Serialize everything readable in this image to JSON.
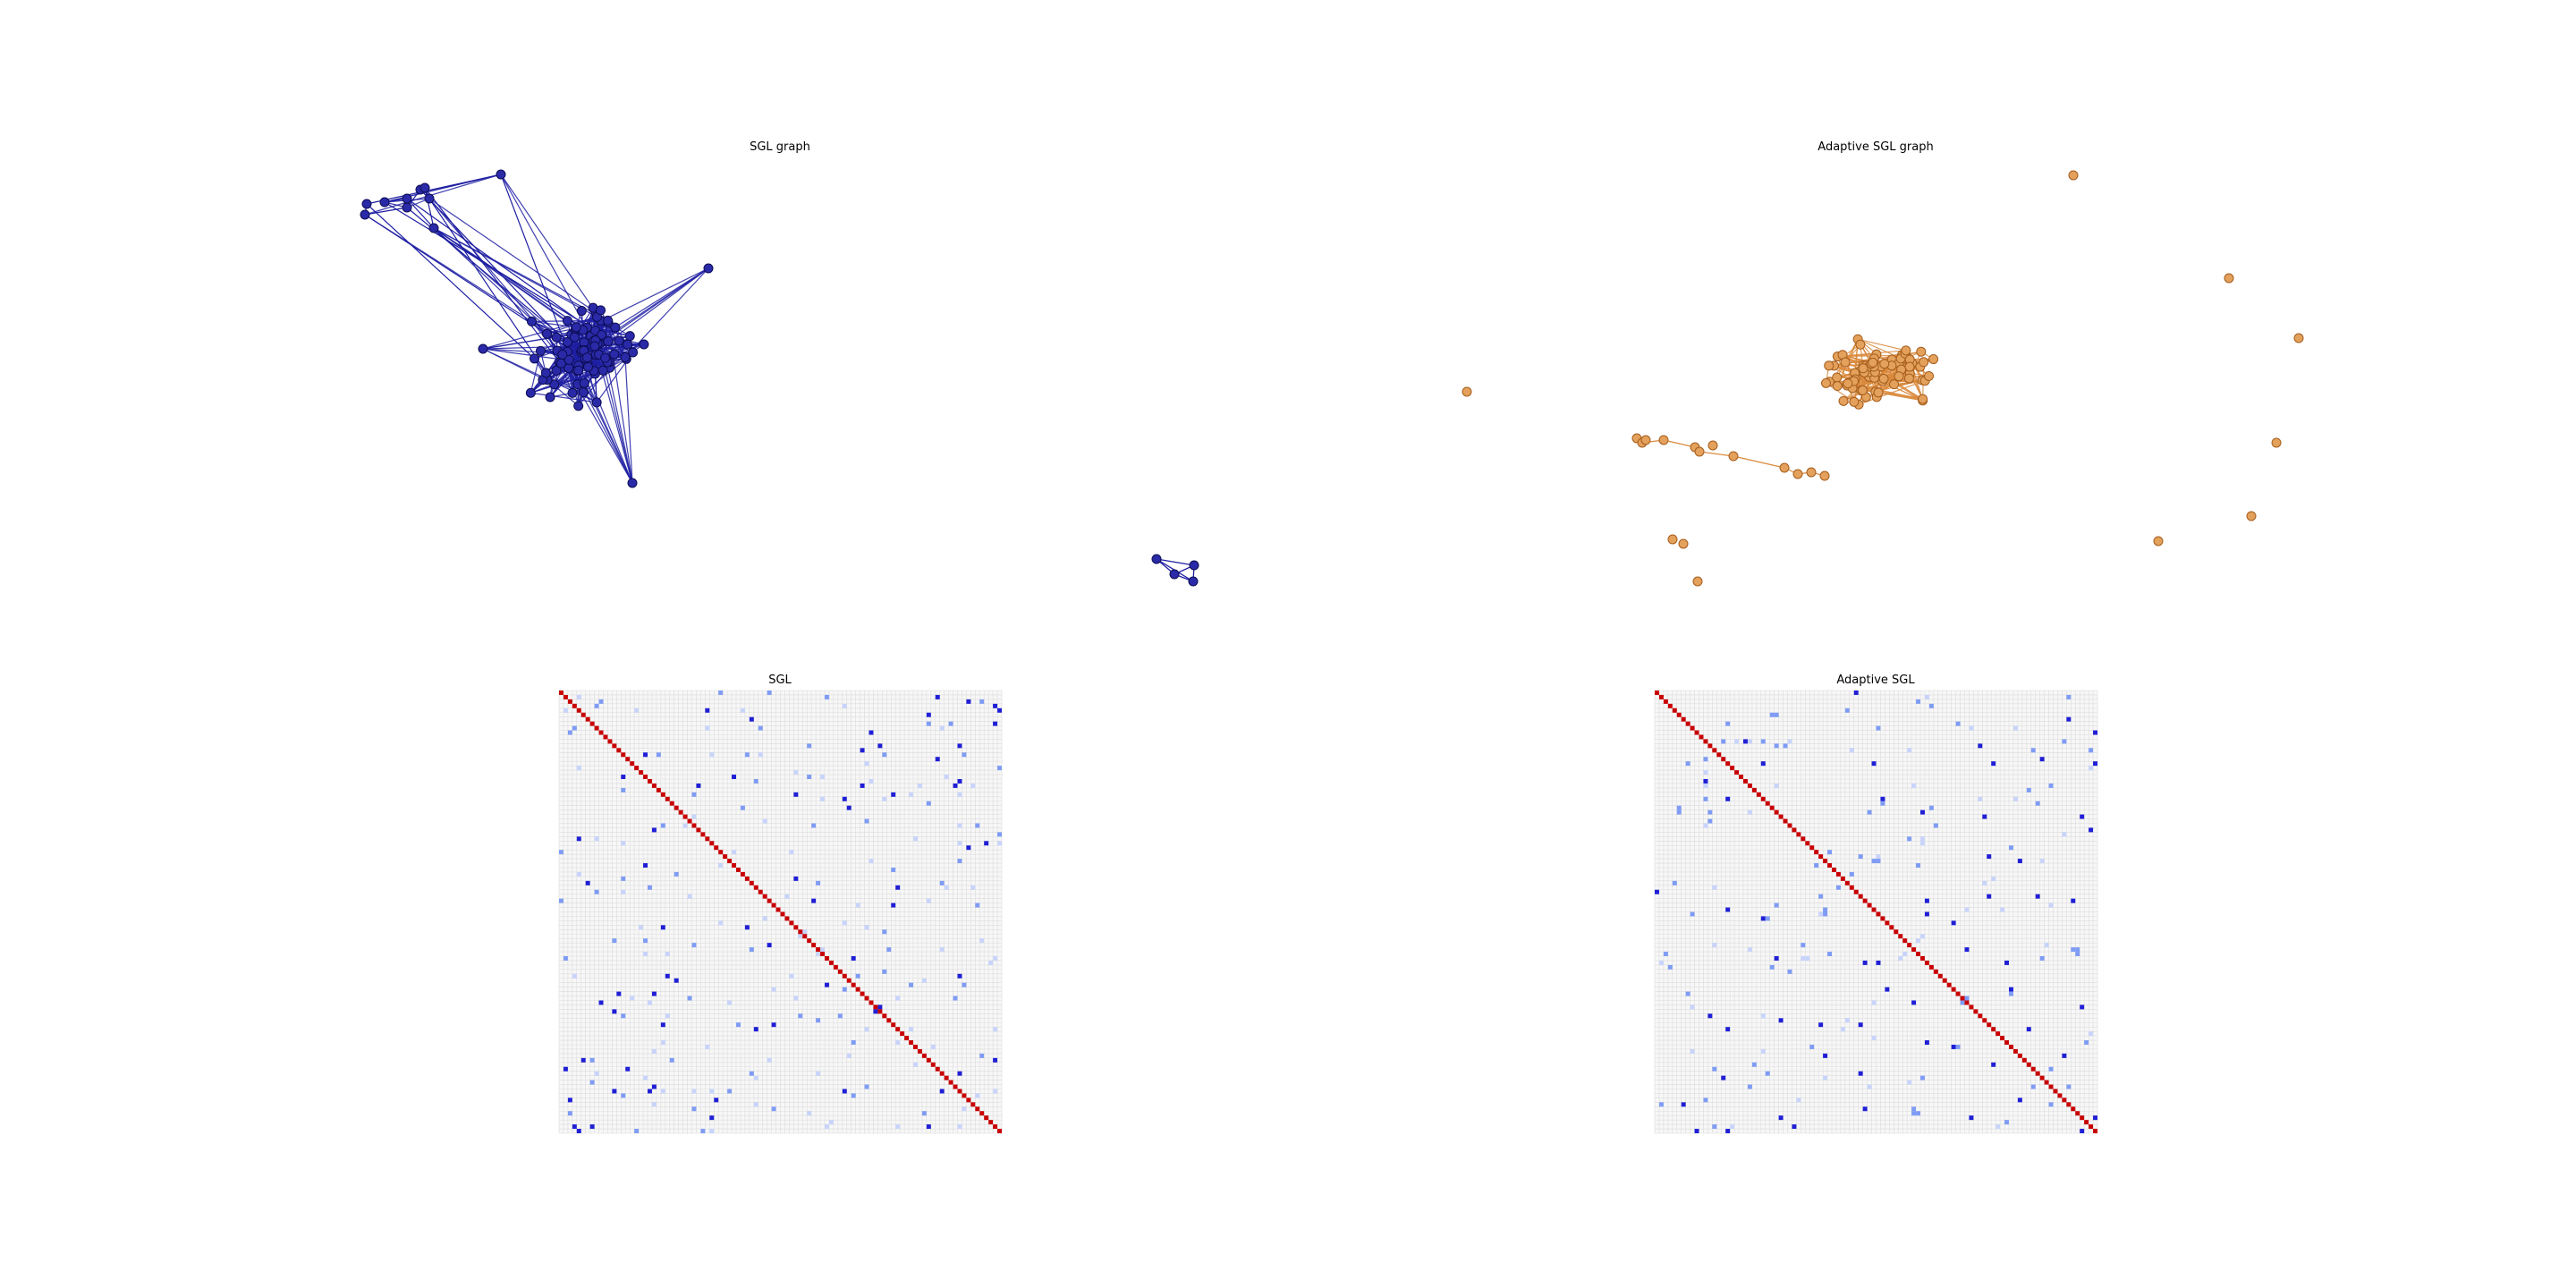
{
  "figure": {
    "panels": [
      {
        "id": "sgl-graph",
        "title": "SGL graph",
        "chart_type": "network",
        "edge_color": "#1f1fa3",
        "node_color": "#2a2aa8",
        "node_count": 100,
        "random_seed": 7
      },
      {
        "id": "adaptive-sgl-graph",
        "title": "Adaptive SGL graph",
        "chart_type": "network",
        "edge_color": "#d98a3c",
        "node_color": "#e3a15c",
        "node_count": 100,
        "random_seed": 13
      },
      {
        "id": "sgl-matrix",
        "title": "SGL",
        "chart_type": "heatmap",
        "matrix_size": 100,
        "diagonal_color": "#c80000",
        "offdiag_colors": [
          "#1f1fd6",
          "#7f9cf5",
          "#c8d4fb"
        ],
        "gridline_color": "#dcdcdc",
        "random_seed": 21
      },
      {
        "id": "adaptive-sgl-matrix",
        "title": "Adaptive SGL",
        "chart_type": "heatmap",
        "matrix_size": 100,
        "diagonal_color": "#c80000",
        "offdiag_colors": [
          "#1f1fd6",
          "#7f9cf5",
          "#c8d4fb"
        ],
        "gridline_color": "#dcdcdc",
        "random_seed": 33
      }
    ]
  },
  "chart_data": [
    {
      "type": "network",
      "title": "SGL graph",
      "nodes": 100,
      "components": [
        {
          "description": "one large connected component",
          "size": 96
        },
        {
          "description": "small 4-node cluster",
          "size": 4
        }
      ]
    },
    {
      "type": "network",
      "title": "Adaptive SGL graph",
      "nodes": 100,
      "components": [
        {
          "description": "main dense cluster",
          "size": 74
        },
        {
          "description": "chain component",
          "size": 10
        },
        {
          "description": "isolated nodes",
          "size": 12
        }
      ]
    },
    {
      "type": "heatmap",
      "title": "SGL",
      "rows": 100,
      "cols": 100,
      "diagonal": "positive (red)",
      "off_diagonal": "sparse negative (blue)"
    },
    {
      "type": "heatmap",
      "title": "Adaptive SGL",
      "rows": 100,
      "cols": 100,
      "diagonal": "positive (red)",
      "off_diagonal": "sparse negative (blue)"
    }
  ]
}
